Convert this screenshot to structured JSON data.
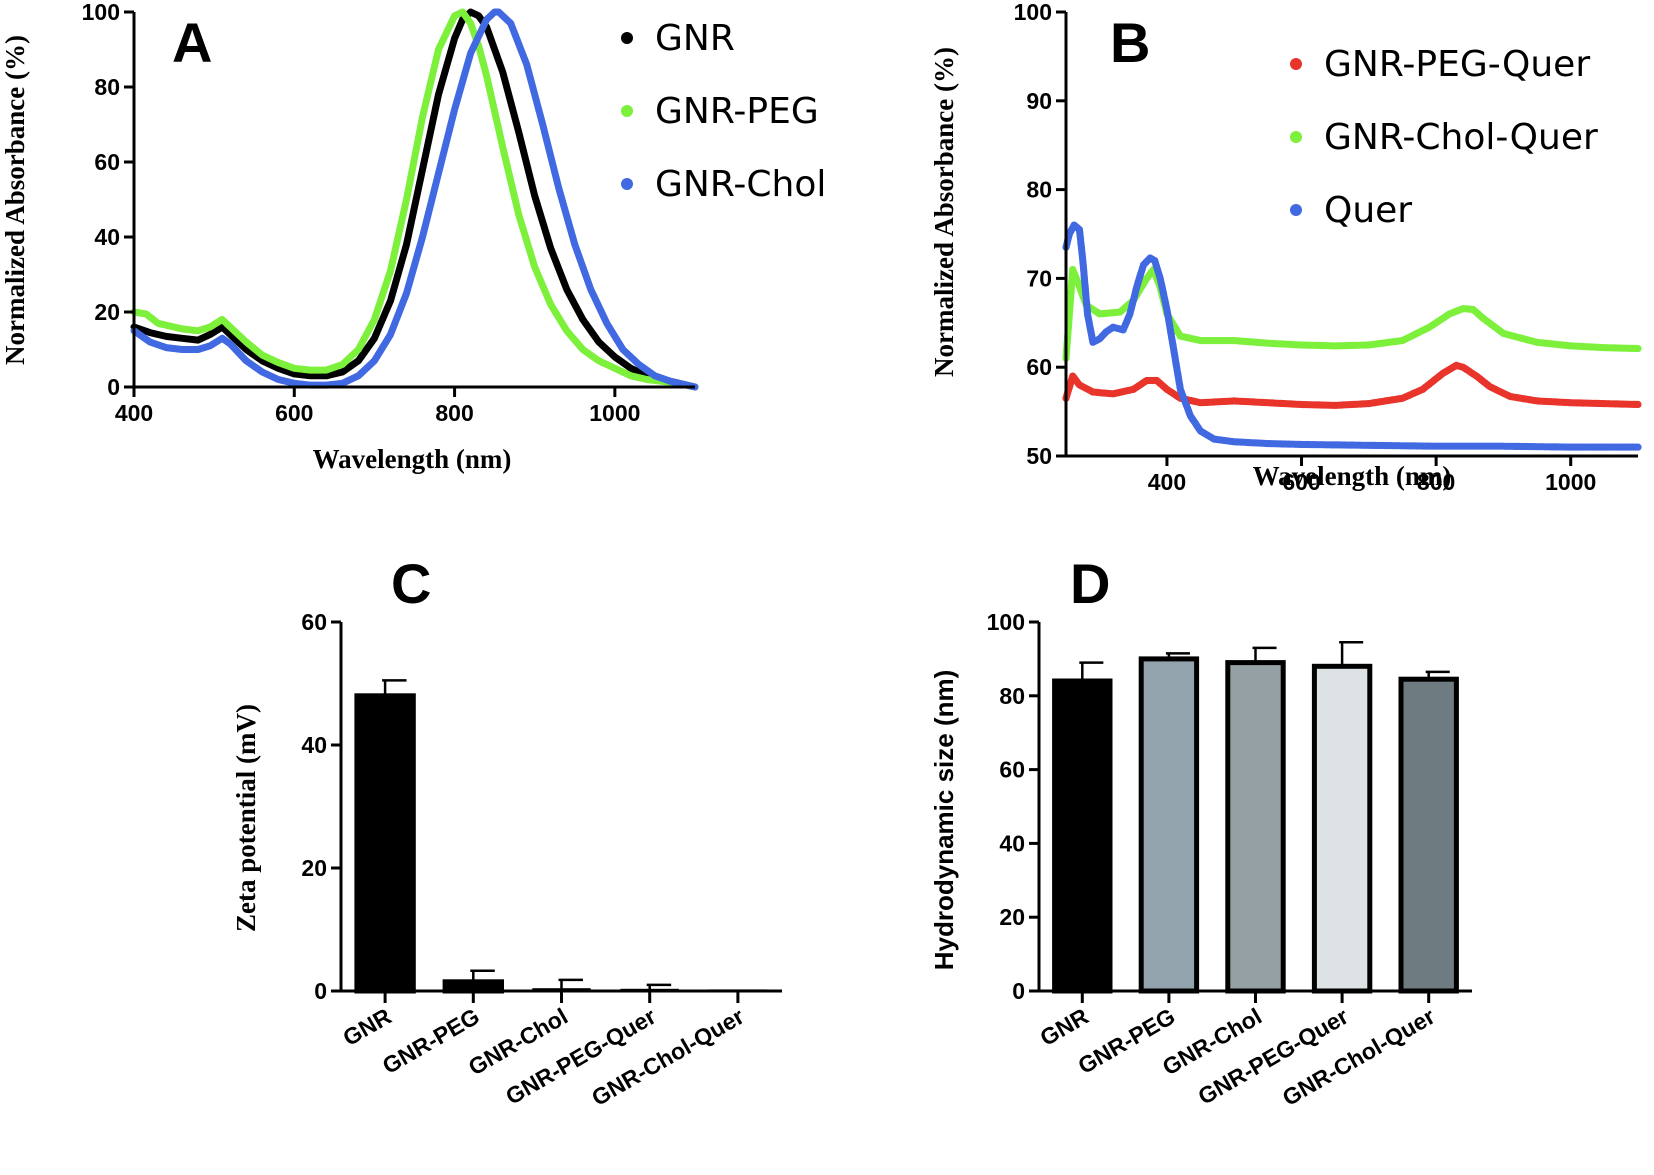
{
  "chart_data": [
    {
      "panel": "A",
      "type": "line",
      "xlabel": "Wavelength (nm)",
      "ylabel": "Normalized Absorbance (%)",
      "xlim": [
        400,
        1100
      ],
      "ylim": [
        0,
        100
      ],
      "xticks": [
        400,
        600,
        800,
        1000
      ],
      "yticks": [
        0,
        20,
        40,
        60,
        80,
        100
      ],
      "legend_position": "top-right",
      "series": [
        {
          "name": "GNR",
          "color": "#000000",
          "x": [
            400,
            420,
            440,
            460,
            480,
            495,
            510,
            520,
            540,
            560,
            580,
            600,
            620,
            640,
            660,
            680,
            700,
            720,
            740,
            760,
            780,
            800,
            810,
            820,
            830,
            840,
            860,
            880,
            900,
            920,
            940,
            960,
            980,
            1000,
            1020,
            1040,
            1060,
            1080,
            1100
          ],
          "y": [
            16,
            14.5,
            13.5,
            13,
            12.5,
            14,
            16,
            14,
            10,
            7,
            5,
            3.5,
            3,
            3,
            4,
            7,
            13,
            23,
            38,
            58,
            78,
            93,
            98,
            100,
            99,
            96,
            84,
            68,
            51,
            37,
            26,
            18,
            12,
            8,
            5,
            3,
            2,
            1,
            0
          ]
        },
        {
          "name": "GNR-PEG",
          "color": "#7cf03a",
          "x": [
            400,
            415,
            430,
            460,
            480,
            495,
            510,
            520,
            540,
            560,
            580,
            600,
            620,
            640,
            660,
            680,
            700,
            720,
            740,
            760,
            780,
            800,
            810,
            820,
            830,
            840,
            860,
            880,
            900,
            920,
            940,
            960,
            980,
            1000,
            1020,
            1040,
            1060,
            1080,
            1100
          ],
          "y": [
            20,
            19.5,
            17,
            15.5,
            15,
            16,
            18,
            16,
            12,
            8.5,
            6.5,
            5,
            4.5,
            4.5,
            6,
            10,
            18,
            31,
            50,
            72,
            90,
            99,
            100,
            97,
            91,
            83,
            64,
            46,
            32,
            22,
            15,
            10,
            7,
            5,
            3,
            2,
            1.5,
            1,
            0
          ]
        },
        {
          "name": "GNR-Chol",
          "color": "#4169e1",
          "x": [
            400,
            420,
            440,
            460,
            480,
            495,
            510,
            520,
            540,
            560,
            580,
            600,
            620,
            640,
            660,
            680,
            700,
            720,
            740,
            760,
            780,
            800,
            820,
            840,
            850,
            855,
            870,
            890,
            910,
            930,
            950,
            970,
            990,
            1010,
            1030,
            1050,
            1070,
            1090,
            1100
          ],
          "y": [
            15,
            12,
            10.5,
            10,
            10,
            11,
            13,
            11.5,
            7,
            4,
            2,
            1,
            0.5,
            0.5,
            1,
            3,
            7,
            14,
            25,
            40,
            57,
            74,
            89,
            98,
            100,
            100,
            97,
            86,
            70,
            53,
            38,
            26,
            17,
            10,
            6,
            3,
            1.5,
            0.5,
            0
          ]
        }
      ]
    },
    {
      "panel": "B",
      "type": "scatter",
      "xlabel": "Wavelength (nm)",
      "ylabel": "Normalized Absorbance (%)",
      "xlim": [
        250,
        1100
      ],
      "ylim": [
        50,
        100
      ],
      "xticks": [
        400,
        600,
        800,
        1000
      ],
      "yticks": [
        50,
        60,
        70,
        80,
        90,
        100
      ],
      "legend_position": "top-right",
      "series": [
        {
          "name": "GNR-PEG-Quer",
          "color": "#e8342b",
          "x": [
            250,
            260,
            270,
            290,
            320,
            350,
            370,
            385,
            400,
            420,
            450,
            500,
            550,
            600,
            650,
            700,
            750,
            780,
            810,
            830,
            840,
            860,
            880,
            910,
            950,
            1000,
            1050,
            1100
          ],
          "y": [
            56.5,
            59,
            58,
            57.2,
            57,
            57.5,
            58.5,
            58.5,
            57.5,
            56.5,
            56,
            56.2,
            56,
            55.8,
            55.7,
            55.9,
            56.5,
            57.5,
            59.3,
            60.2,
            60,
            59,
            57.8,
            56.7,
            56.2,
            56,
            55.9,
            55.8
          ]
        },
        {
          "name": "GNR-Chol-Quer",
          "color": "#7cf03a",
          "x": [
            250,
            260,
            268,
            280,
            300,
            330,
            350,
            370,
            380,
            390,
            400,
            420,
            450,
            500,
            550,
            600,
            650,
            700,
            750,
            790,
            820,
            840,
            855,
            870,
            900,
            950,
            1000,
            1050,
            1100
          ],
          "y": [
            61,
            71,
            69.5,
            67,
            66,
            66.2,
            67.5,
            70,
            71,
            69,
            66,
            63.5,
            63,
            63,
            62.7,
            62.5,
            62.4,
            62.5,
            63,
            64.5,
            66,
            66.6,
            66.5,
            65.5,
            63.8,
            62.8,
            62.4,
            62.2,
            62.1
          ]
        },
        {
          "name": "Quer",
          "color": "#4169e1",
          "x": [
            250,
            255,
            262,
            270,
            275,
            282,
            290,
            300,
            310,
            320,
            335,
            345,
            355,
            365,
            375,
            382,
            390,
            400,
            410,
            420,
            435,
            450,
            470,
            500,
            550,
            600,
            700,
            800,
            900,
            1000,
            1100
          ],
          "y": [
            73.5,
            75,
            76,
            75.5,
            72,
            66,
            62.8,
            63.2,
            64,
            64.5,
            64.2,
            66,
            69,
            71.5,
            72.3,
            72,
            70,
            66.5,
            62,
            57.5,
            54.5,
            52.8,
            51.9,
            51.6,
            51.4,
            51.3,
            51.2,
            51.1,
            51.1,
            51,
            51
          ]
        }
      ]
    },
    {
      "panel": "C",
      "type": "bar",
      "ylabel": "Zeta potential (mV)",
      "ylim": [
        0,
        60
      ],
      "yticks": [
        0,
        20,
        40,
        60
      ],
      "categories": [
        "GNR",
        "GNR-PEG",
        "GNR-Chol",
        "GNR-PEG-Quer",
        "GNR-Chol-Quer"
      ],
      "values": [
        48,
        1.5,
        0.3,
        0.2,
        0.1
      ],
      "errors": [
        2.5,
        1.8,
        1.5,
        0.8,
        0
      ],
      "colors": [
        "#000000",
        "#000000",
        "#000000",
        "#000000",
        "#000000"
      ]
    },
    {
      "panel": "D",
      "type": "bar",
      "ylabel": "Hydrodynamic size (nm)",
      "ylim": [
        0,
        100
      ],
      "yticks": [
        0,
        20,
        40,
        60,
        80,
        100
      ],
      "categories": [
        "GNR",
        "GNR-PEG",
        "GNR-Chol",
        "GNR-PEG-Quer",
        "GNR-Chol-Quer"
      ],
      "values": [
        84,
        90,
        89,
        88,
        84.5
      ],
      "errors": [
        5,
        1.5,
        4,
        6.5,
        2
      ],
      "colors": [
        "#000000",
        "#93a3ad",
        "#94a0a3",
        "#dde3e4",
        "#6e7b81"
      ]
    }
  ]
}
